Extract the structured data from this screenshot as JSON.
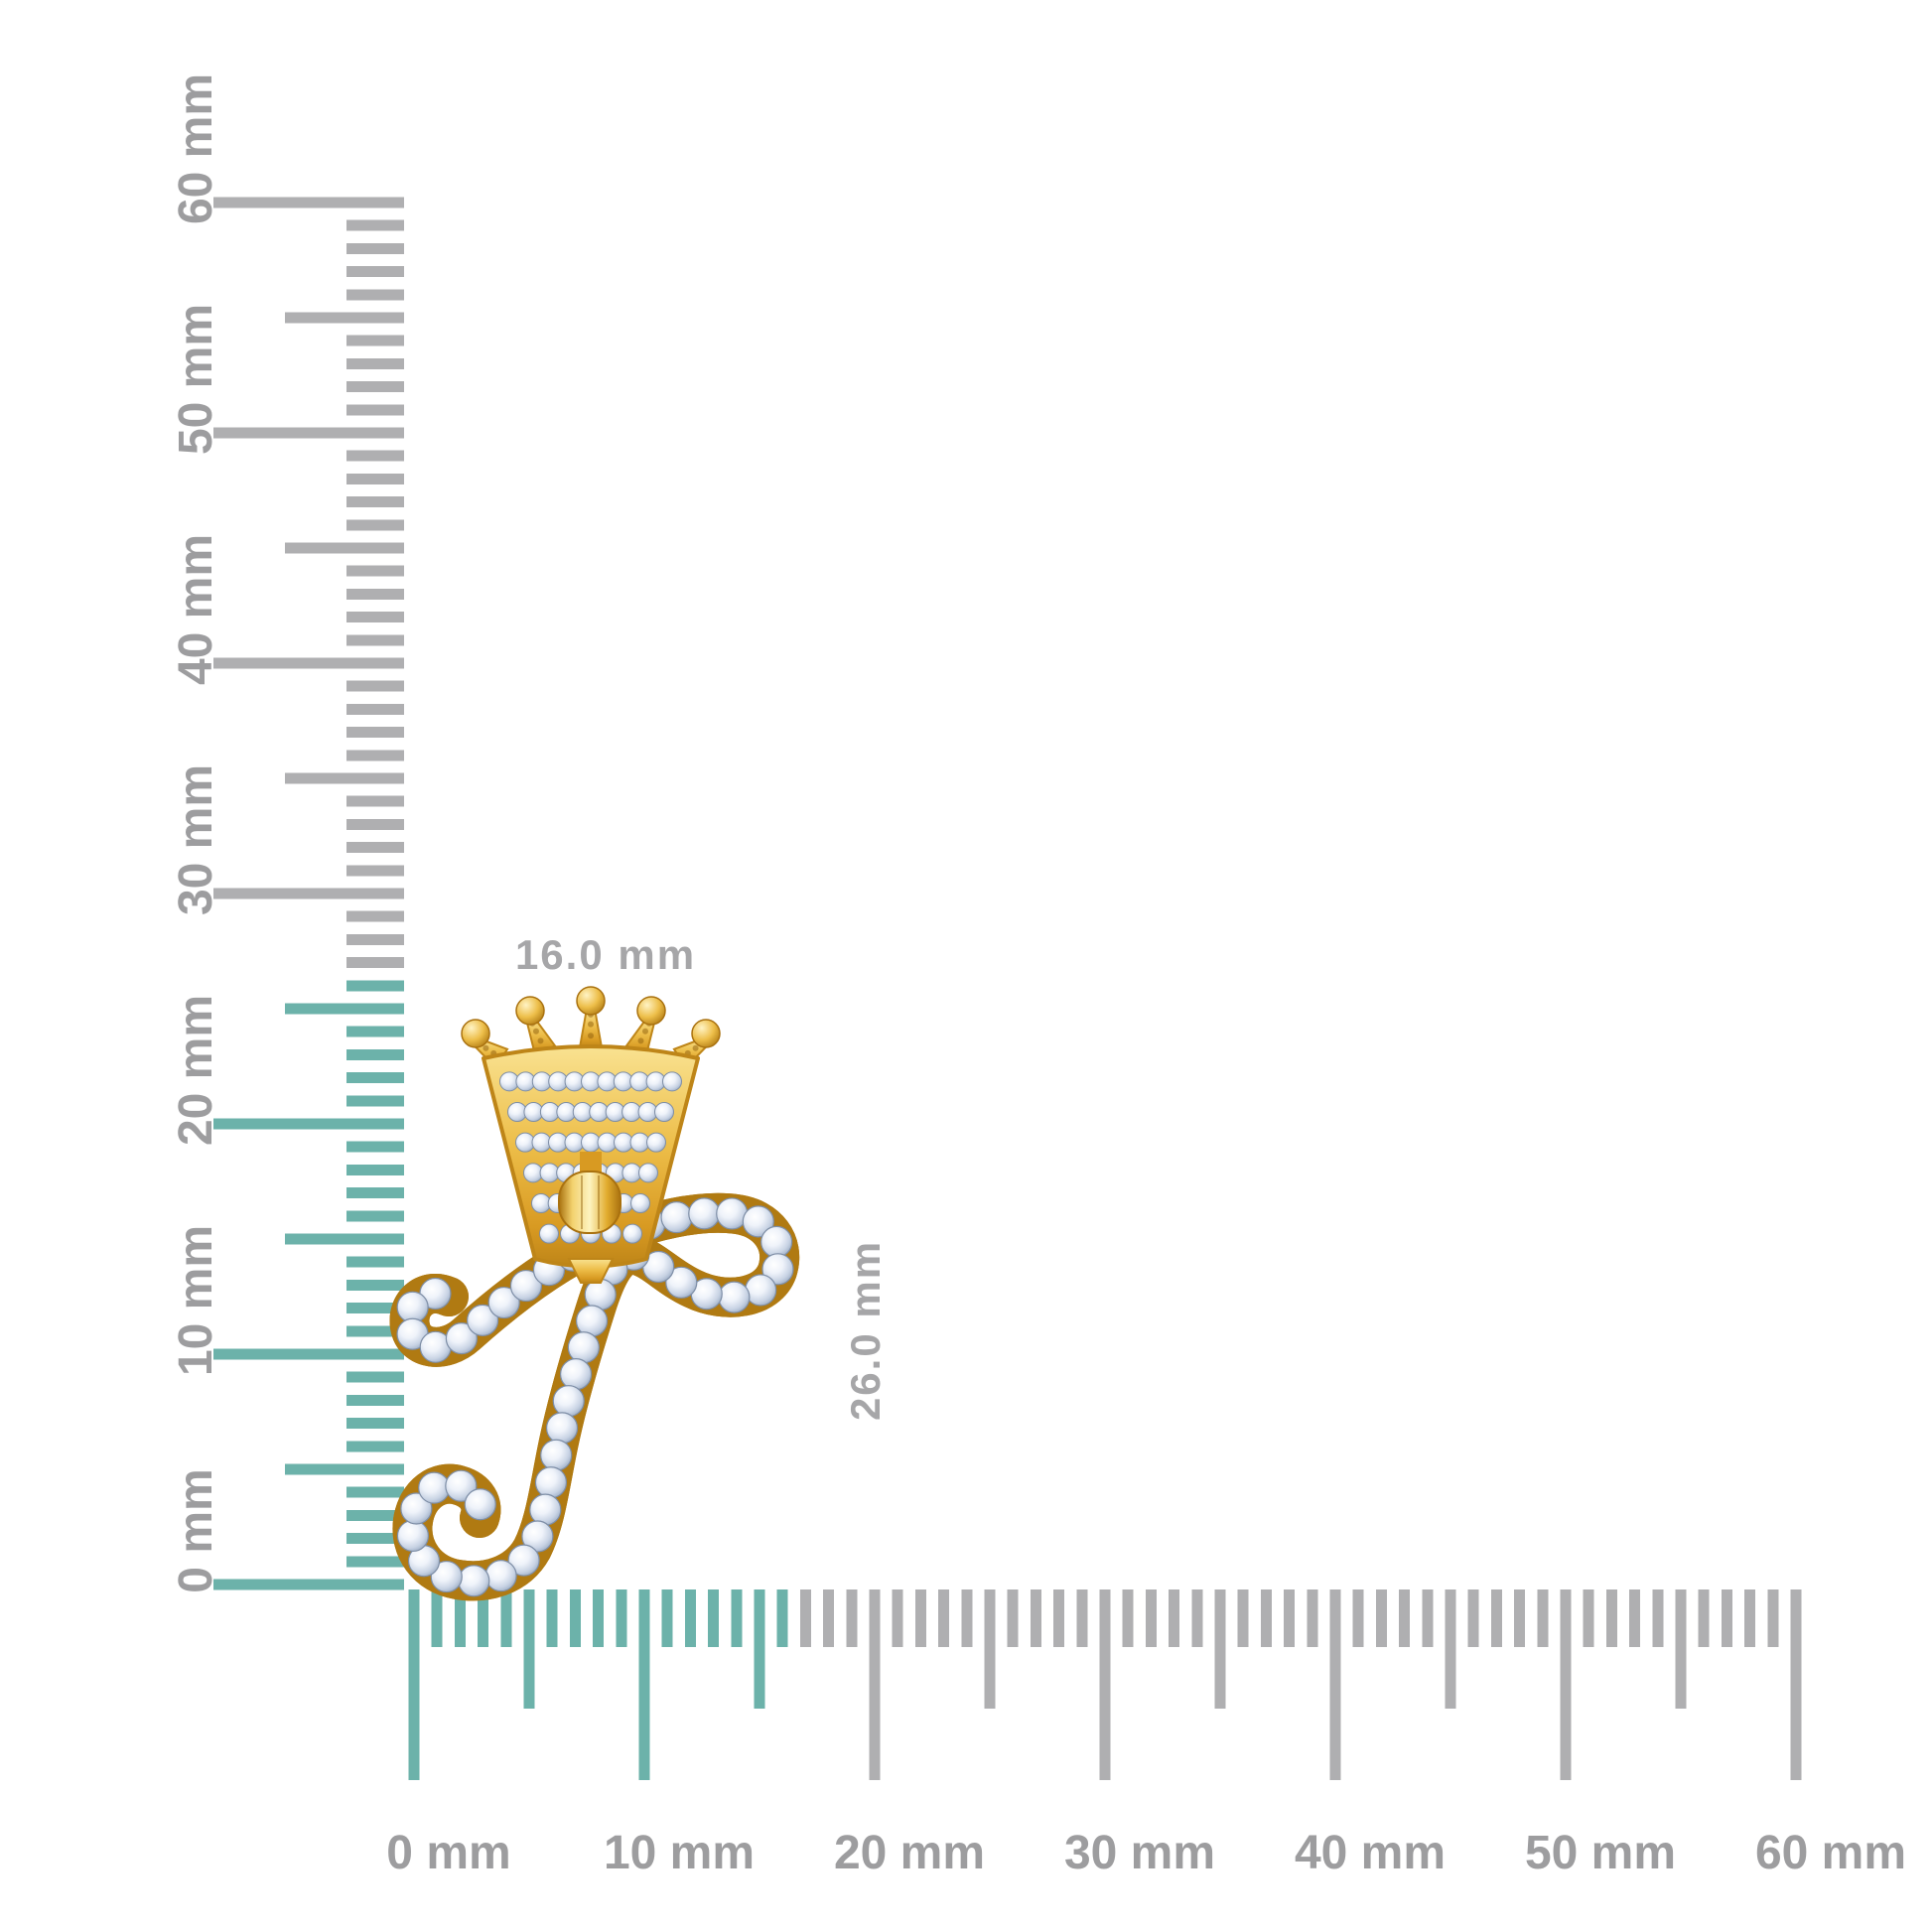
{
  "title": "Crown initial pendant product image with millimetre measurement rulers",
  "colors": {
    "background": "#FFFFFF",
    "highlight_teal": "#6CB2AA",
    "ruler_gray": "#AFAFB1",
    "ruler_label_gray": "#9D9D9F",
    "dimension_label_gray": "#A6A6A8",
    "gold": "#EDBE49",
    "gold_light": "#F9E291",
    "gold_dark": "#BE8518",
    "diamond_light": "#FFFFFF",
    "diamond_mid": "#DCE4F0",
    "diamond_dark": "#93A5BE"
  },
  "pendant": {
    "description": "Yellow gold five-point crown over cursive script initial, pave set with round diamonds",
    "width_label": "16.0 mm",
    "height_label": "26.0 mm",
    "crown_spikes": 5,
    "crown_stone_rows": [
      11,
      10,
      9,
      8,
      7,
      5
    ],
    "letter_stone_count": 46
  },
  "rulers": {
    "unit": "mm",
    "vertical": {
      "min_mm": 0,
      "max_mm": 60,
      "major_every_mm": 10,
      "medium_every_mm": 5,
      "labels": [
        "0 mm",
        "10 mm",
        "20 mm",
        "30 mm",
        "40 mm",
        "50 mm",
        "60 mm"
      ],
      "highlighted_mm": 26
    },
    "horizontal": {
      "min_mm": 0,
      "max_mm": 60,
      "major_every_mm": 10,
      "medium_every_mm": 5,
      "labels": [
        "0 mm",
        "10 mm",
        "20 mm",
        "30 mm",
        "40 mm",
        "50 mm",
        "60 mm"
      ],
      "highlighted_mm": 16
    }
  }
}
